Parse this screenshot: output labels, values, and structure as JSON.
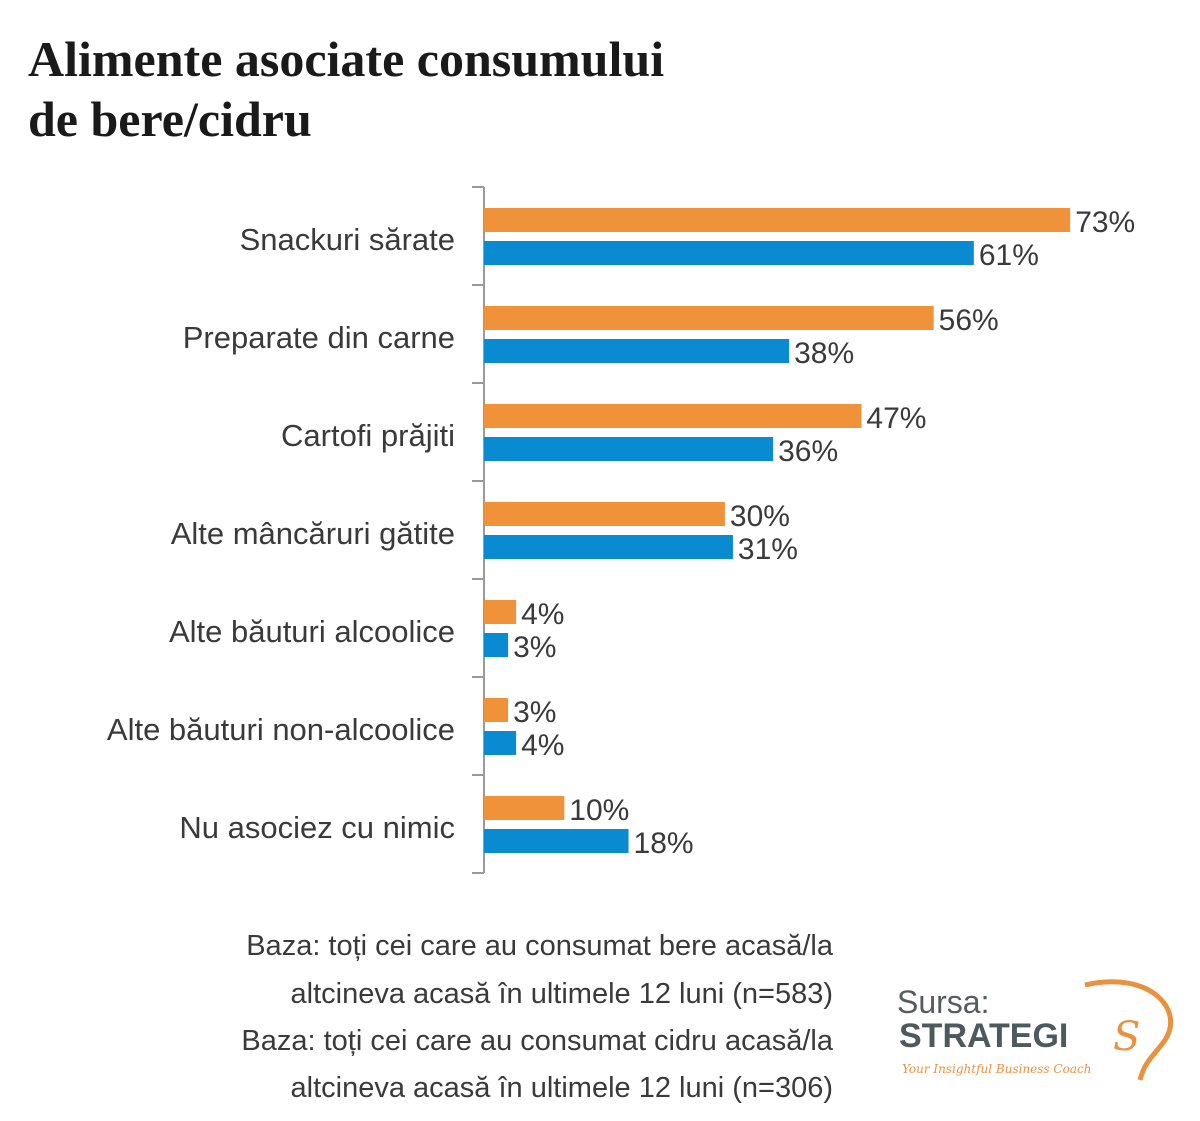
{
  "chart_data": {
    "type": "bar",
    "orientation": "horizontal",
    "title": "Alimente asociate consumului de bere/cidru",
    "title_lines": [
      "Alimente asociate consumului",
      "de bere/cidru"
    ],
    "categories": [
      "Snackuri sărate",
      "Preparate din carne",
      "Cartofi prăjiti",
      "Alte mâncăruri gătite",
      "Alte băuturi alcoolice",
      "Alte băuturi non-alcoolice",
      "Nu asociez cu nimic"
    ],
    "series": [
      {
        "color": "#f0923a",
        "values": [
          73,
          56,
          47,
          30,
          4,
          3,
          10
        ]
      },
      {
        "color": "#0a8ad0",
        "values": [
          61,
          38,
          36,
          31,
          3,
          4,
          18
        ]
      }
    ],
    "value_suffix": "%",
    "xlim": [
      0,
      80
    ],
    "grid": false,
    "legend": "none"
  },
  "footnotes": [
    "Baza: toți cei care au consumat bere acasă/la",
    "altcineva acasă în ultimele 12 luni (n=583)",
    "Baza: toți cei care au consumat cidru acasă/la",
    "altcineva acasă în ultimele 12 luni (n=306)"
  ],
  "source": {
    "label": "Sursa:",
    "brand": "STRATEGI",
    "brand_end": "S",
    "tagline": "Your Insightful Business Coach",
    "brand_color": "#e8913f",
    "icon": "lightbulb-logo-icon"
  }
}
